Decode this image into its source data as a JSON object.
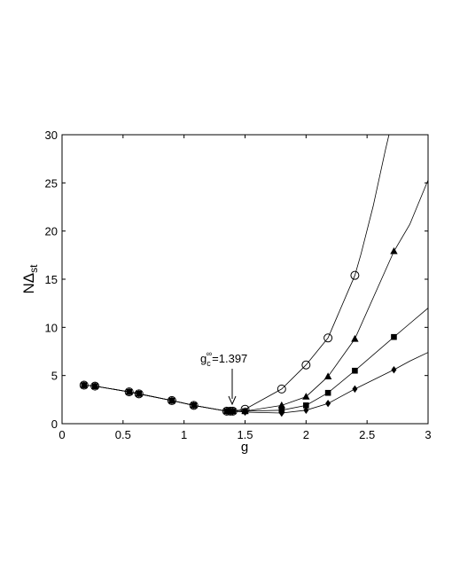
{
  "chart_data": {
    "type": "line",
    "xlabel": "g",
    "ylabel": {
      "main": "NΔ",
      "sub": "st"
    },
    "xlim": [
      0,
      3
    ],
    "ylim": [
      0,
      30
    ],
    "xticks": [
      0,
      0.5,
      1,
      1.5,
      2,
      2.5,
      3
    ],
    "yticks": [
      0,
      5,
      10,
      15,
      20,
      25,
      30
    ],
    "xtick_labels": [
      "0",
      "0.5",
      "1",
      "1.5",
      "2",
      "2.5",
      "3"
    ],
    "ytick_labels": [
      "0",
      "5",
      "10",
      "15",
      "20",
      "25",
      "30"
    ],
    "grid": false,
    "legend": "none",
    "annotation": {
      "base": "g",
      "sub": "c",
      "sup": "∞",
      "value": "=1.397",
      "target": [
        1.397,
        1.4
      ]
    },
    "series": [
      {
        "marker": "circle-open",
        "x": [
          0.18,
          0.27,
          0.55,
          0.63,
          0.9,
          1.08,
          1.35,
          1.38,
          1.4,
          1.5,
          1.8,
          2.0,
          2.18,
          2.4
        ],
        "y": [
          4.0,
          3.9,
          3.3,
          3.1,
          2.4,
          1.9,
          1.3,
          1.3,
          1.3,
          1.5,
          3.6,
          6.1,
          8.9,
          15.4
        ],
        "curve_extension": [
          [
            2.45,
            17.6
          ],
          [
            2.55,
            22.6
          ],
          [
            2.65,
            28.4
          ],
          [
            2.68,
            30.0
          ]
        ]
      },
      {
        "marker": "triangle",
        "x": [
          0.18,
          0.27,
          0.55,
          0.63,
          0.9,
          1.08,
          1.35,
          1.38,
          1.4,
          1.5,
          1.8,
          2.0,
          2.18,
          2.4,
          2.72
        ],
        "y": [
          4.0,
          3.9,
          3.3,
          3.1,
          2.4,
          1.9,
          1.3,
          1.3,
          1.3,
          1.3,
          1.9,
          2.8,
          4.9,
          8.8,
          17.9
        ],
        "curve_extension": [
          [
            2.85,
            20.7
          ],
          [
            3.0,
            25.3
          ]
        ]
      },
      {
        "marker": "square",
        "x": [
          0.18,
          0.27,
          0.55,
          0.63,
          0.9,
          1.08,
          1.35,
          1.38,
          1.4,
          1.5,
          1.8,
          2.0,
          2.18,
          2.4,
          2.72
        ],
        "y": [
          4.0,
          3.9,
          3.3,
          3.1,
          2.4,
          1.9,
          1.3,
          1.3,
          1.3,
          1.3,
          1.4,
          1.9,
          3.2,
          5.5,
          9.0
        ],
        "curve_extension": [
          [
            2.85,
            10.4
          ],
          [
            3.0,
            12.0
          ]
        ]
      },
      {
        "marker": "diamond",
        "x": [
          0.18,
          0.27,
          0.55,
          0.63,
          0.9,
          1.08,
          1.35,
          1.38,
          1.4,
          1.5,
          1.8,
          2.0,
          2.18,
          2.4,
          2.72
        ],
        "y": [
          4.0,
          3.9,
          3.3,
          3.1,
          2.4,
          1.9,
          1.3,
          1.3,
          1.3,
          1.2,
          1.1,
          1.4,
          2.1,
          3.6,
          5.6
        ],
        "curve_extension": [
          [
            2.85,
            6.5
          ],
          [
            3.0,
            7.4
          ]
        ]
      }
    ]
  }
}
